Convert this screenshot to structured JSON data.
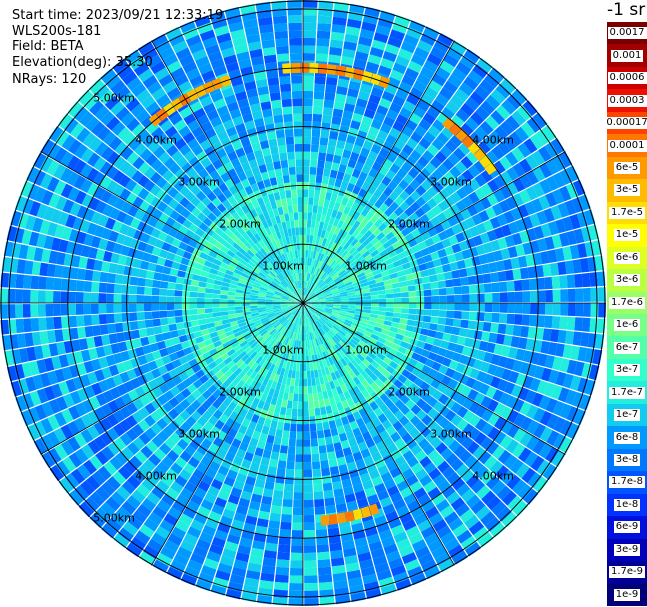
{
  "header": {
    "start_time": "Start time: 2023/09/21 12:33:19",
    "instrument": "WLS200s-181",
    "field": "Field: BETA",
    "elevation": "Elevation(deg): 35.30",
    "nrays": "NRays: 120"
  },
  "colorbar": {
    "unit": "-1 sr",
    "ticks": [
      "0.0017",
      "0.001",
      "0.0006",
      "0.0003",
      "0.00017",
      "0.0001",
      "6e-5",
      "3e-5",
      "1.7e-5",
      "1e-5",
      "6e-6",
      "3e-6",
      "1.7e-6",
      "1e-6",
      "6e-7",
      "3e-7",
      "1.7e-7",
      "1e-7",
      "6e-8",
      "3e-8",
      "1.7e-8",
      "1e-8",
      "6e-9",
      "3e-9",
      "1.7e-9",
      "1e-9"
    ],
    "colors": [
      "#7a0000",
      "#a00000",
      "#cc0000",
      "#ee1100",
      "#ff4400",
      "#ff7700",
      "#ff9900",
      "#ffbb00",
      "#ffdd00",
      "#ffff00",
      "#ddff22",
      "#bbff44",
      "#99ff66",
      "#77ff88",
      "#55ffaa",
      "#33ffcc",
      "#22eedd",
      "#11ccee",
      "#0099ff",
      "#0077ff",
      "#0055ff",
      "#0033ff",
      "#0011dd",
      "#0000bb",
      "#000099",
      "#000077"
    ]
  },
  "map": {
    "ring_labels": {
      "r1": "1.00km",
      "r2": "2.00km",
      "r3": "3.00km",
      "r4": "4.00km",
      "r5": "5.00km"
    },
    "ray_count": 120,
    "high_backscatter_arcs": [
      {
        "azimuth_start": 355,
        "azimuth_end": 20,
        "range_km": 5.6
      },
      {
        "azimuth_start": 38,
        "azimuth_end": 55,
        "range_km": 5.5
      },
      {
        "azimuth_start": 160,
        "azimuth_end": 175,
        "range_km": 5.2
      },
      {
        "azimuth_start": 320,
        "azimuth_end": 340,
        "range_km": 5.6
      }
    ]
  }
}
